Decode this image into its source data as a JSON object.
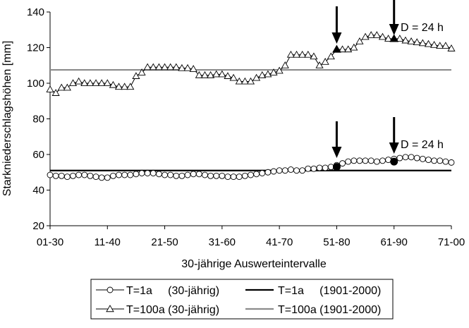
{
  "chart_data": {
    "type": "line",
    "xlabel": "30-jährige Auswerteintervalle",
    "ylabel": "Starkniederschlagshöhen [mm]",
    "ylim": [
      20,
      140
    ],
    "yticks": [
      20,
      40,
      60,
      80,
      100,
      120,
      140
    ],
    "xticks": [
      "01-30",
      "11-40",
      "21-50",
      "31-60",
      "41-70",
      "51-80",
      "61-90",
      "71-00"
    ],
    "grid": false,
    "legend_position": "bottom",
    "annotations": {
      "upper_label": "D = 24 h",
      "lower_label": "D = 24 h",
      "arrow_intervals": [
        "51-80",
        "61-90"
      ]
    },
    "series": [
      {
        "name": "T=1a     (30-jährig)",
        "style": "line-circle",
        "color": "#000000",
        "values": [
          48.5,
          48,
          48,
          47.5,
          48,
          48.5,
          48.5,
          48,
          47.5,
          47,
          47,
          48,
          48.5,
          48.5,
          48.5,
          49,
          49.5,
          49.5,
          49.5,
          49,
          48.5,
          48.5,
          48,
          48,
          48.5,
          49,
          49,
          48.5,
          48,
          48,
          48,
          47.5,
          47.5,
          47.5,
          48,
          48.5,
          49,
          49.5,
          50,
          50.5,
          51,
          51,
          51.5,
          51,
          51,
          52,
          52,
          52.5,
          52.5,
          53,
          54,
          55,
          56,
          56.5,
          56.5,
          56.5,
          56.5,
          56,
          56.5,
          57,
          57.5,
          58,
          58.5,
          58.5,
          58,
          57.5,
          57,
          56.5,
          56.5,
          56,
          55.5
        ]
      },
      {
        "name": "T=1a     (1901-2000)",
        "style": "line",
        "color": "#000000",
        "values": [
          51,
          51
        ]
      },
      {
        "name": "T=100a (30-jährig)",
        "style": "line-triangle",
        "color": "#000000",
        "values": [
          96.5,
          94.5,
          97.5,
          97.5,
          100,
          101,
          100,
          100,
          100,
          100,
          100,
          99,
          98,
          98,
          98,
          104,
          106,
          109,
          109,
          109,
          109,
          109,
          109,
          108.5,
          108.5,
          108,
          104.5,
          104.5,
          104.5,
          105,
          105,
          104,
          103,
          101,
          101,
          101,
          103,
          104.5,
          105,
          106,
          107,
          110,
          116,
          116,
          116,
          116,
          115,
          110,
          112,
          115,
          119,
          119,
          119,
          120,
          123.5,
          126,
          127,
          127,
          126,
          125,
          125,
          125,
          124,
          123.5,
          123,
          122.5,
          122,
          121.5,
          121,
          121,
          119.5
        ]
      },
      {
        "name": "T=100a (1901-2000)",
        "style": "line",
        "color": "#8c8c8c",
        "values": [
          107.5,
          107.5
        ]
      }
    ],
    "highlighted_points": {
      "upper": [
        119,
        125
      ],
      "lower": [
        53,
        56
      ]
    }
  }
}
